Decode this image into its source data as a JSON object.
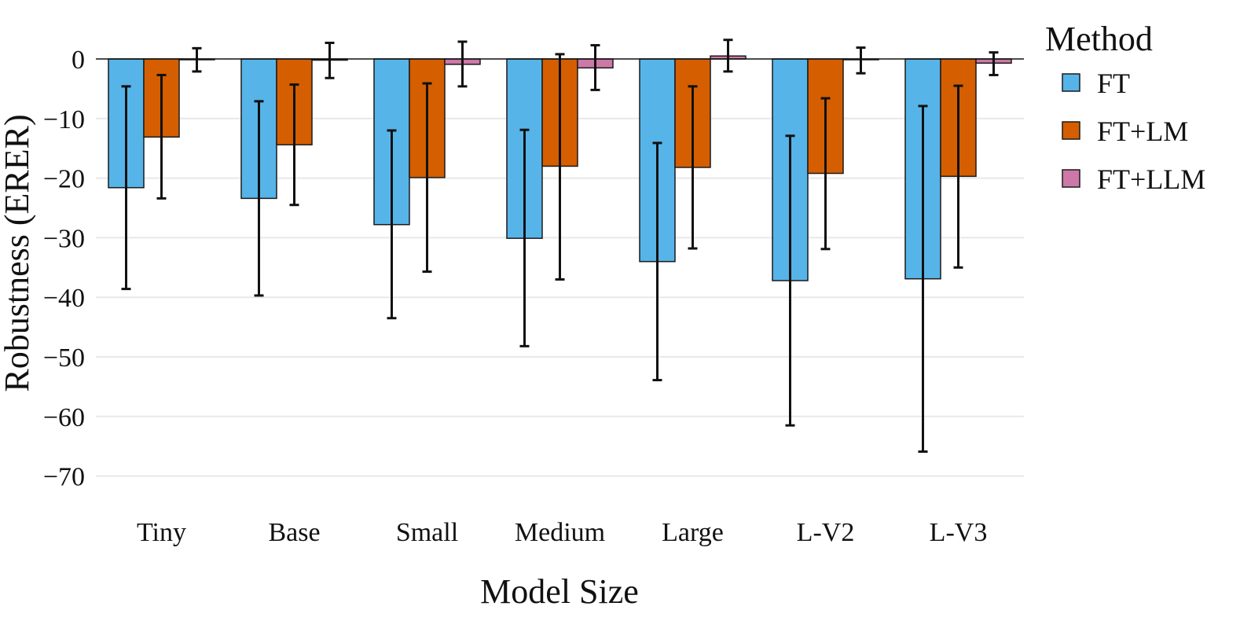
{
  "chart_data": {
    "type": "bar",
    "xlabel": "Model Size",
    "ylabel": "Robustness (ERER)",
    "ylim": [
      -76,
      5
    ],
    "yticks": [
      0,
      -10,
      -20,
      -30,
      -40,
      -50,
      -60,
      -70
    ],
    "ytick_labels": [
      "0",
      "−10",
      "−20",
      "−30",
      "−40",
      "−50",
      "−60",
      "−70"
    ],
    "grid": true,
    "legend": {
      "title": "Method",
      "position": "right"
    },
    "categories": [
      "Tiny",
      "Base",
      "Small",
      "Medium",
      "Large",
      "L-V2",
      "L-V3"
    ],
    "series": [
      {
        "name": "FT",
        "color": "#56B4E9",
        "values": [
          -21.6,
          -23.4,
          -27.8,
          -30.1,
          -34.0,
          -37.2,
          -36.9
        ],
        "err_low": [
          -38.6,
          -39.7,
          -43.5,
          -48.2,
          -53.9,
          -61.5,
          -65.9
        ],
        "err_high": [
          -4.6,
          -7.1,
          -12.0,
          -11.9,
          -14.1,
          -12.9,
          -7.9
        ]
      },
      {
        "name": "FT+LM",
        "color": "#D55E00",
        "values": [
          -13.1,
          -14.4,
          -19.9,
          -18.0,
          -18.2,
          -19.2,
          -19.7
        ],
        "err_low": [
          -23.4,
          -24.5,
          -35.7,
          -37.0,
          -31.8,
          -31.9,
          -35.0
        ],
        "err_high": [
          -2.7,
          -4.3,
          -4.1,
          0.8,
          -4.6,
          -6.6,
          -4.5
        ]
      },
      {
        "name": "FT+LLM",
        "color": "#CC79A7",
        "values": [
          -0.1,
          -0.2,
          -0.9,
          -1.5,
          0.5,
          -0.1,
          -0.7
        ],
        "err_low": [
          -2.1,
          -3.2,
          -4.6,
          -5.2,
          -2.1,
          -2.4,
          -2.7
        ],
        "err_high": [
          1.8,
          2.7,
          2.9,
          2.3,
          3.2,
          1.9,
          1.1
        ]
      }
    ]
  }
}
